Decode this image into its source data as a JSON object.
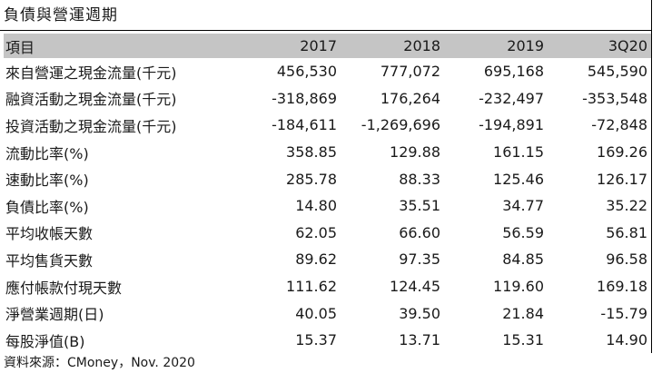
{
  "title": "負債與營運週期",
  "table": {
    "header": {
      "label": "項目",
      "cols": [
        "2017",
        "2018",
        "2019",
        "3Q20"
      ]
    },
    "rows": [
      {
        "label": "來自營運之現金流量(千元)",
        "values": [
          "456,530",
          "777,072",
          "695,168",
          "545,590"
        ]
      },
      {
        "label": "融資活動之現金流量(千元)",
        "values": [
          "-318,869",
          "176,264",
          "-232,497",
          "-353,548"
        ]
      },
      {
        "label": "投資活動之現金流量(千元)",
        "values": [
          "-184,611",
          "-1,269,696",
          "-194,891",
          "-72,848"
        ]
      },
      {
        "label": "流動比率(%)",
        "values": [
          "358.85",
          "129.88",
          "161.15",
          "169.26"
        ]
      },
      {
        "label": "速動比率(%)",
        "values": [
          "285.78",
          "88.33",
          "125.46",
          "126.17"
        ]
      },
      {
        "label": "負債比率(%)",
        "values": [
          "14.80",
          "35.51",
          "34.77",
          "35.22"
        ]
      },
      {
        "label": "平均收帳天數",
        "values": [
          "62.05",
          "66.60",
          "56.59",
          "56.81"
        ]
      },
      {
        "label": "平均售貨天數",
        "values": [
          "89.62",
          "97.35",
          "84.85",
          "96.58"
        ]
      },
      {
        "label": "應付帳款付現天數",
        "values": [
          "111.62",
          "124.45",
          "119.60",
          "169.18"
        ]
      },
      {
        "label": "淨營業週期(日)",
        "values": [
          "40.05",
          "39.50",
          "21.84",
          "-15.79"
        ]
      },
      {
        "label": "每股淨值(B)",
        "values": [
          "15.37",
          "13.71",
          "15.31",
          "14.90"
        ]
      }
    ]
  },
  "source": "資料來源：CMoney，Nov. 2020",
  "colors": {
    "header_bg": "#c5c5c5",
    "rule": "#000000",
    "text": "#1a1a1a"
  }
}
